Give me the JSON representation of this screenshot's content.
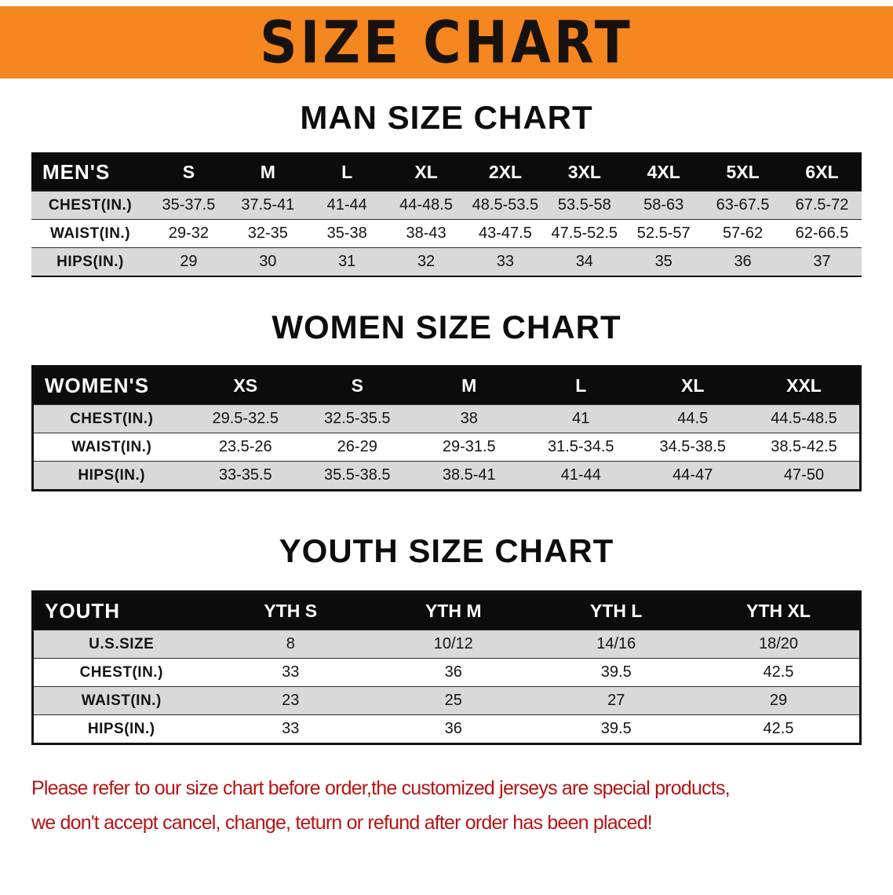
{
  "banner": {
    "title": "SIZE CHART"
  },
  "man": {
    "heading": "MAN SIZE CHART",
    "table": {
      "header": [
        "MEN'S",
        "S",
        "M",
        "L",
        "XL",
        "2XL",
        "3XL",
        "4XL",
        "5XL",
        "6XL"
      ],
      "rows": [
        [
          "CHEST(IN.)",
          "35-37.5",
          "37.5-41",
          "41-44",
          "44-48.5",
          "48.5-53.5",
          "53.5-58",
          "58-63",
          "63-67.5",
          "67.5-72"
        ],
        [
          "WAIST(IN.)",
          "29-32",
          "32-35",
          "35-38",
          "38-43",
          "43-47.5",
          "47.5-52.5",
          "52.5-57",
          "57-62",
          "62-66.5"
        ],
        [
          "HIPS(IN.)",
          "29",
          "30",
          "31",
          "32",
          "33",
          "34",
          "35",
          "36",
          "37"
        ]
      ]
    }
  },
  "women": {
    "heading": "WOMEN SIZE CHART",
    "table": {
      "header": [
        "WOMEN'S",
        "XS",
        "S",
        "M",
        "L",
        "XL",
        "XXL"
      ],
      "rows": [
        [
          "CHEST(IN.)",
          "29.5-32.5",
          "32.5-35.5",
          "38",
          "41",
          "44.5",
          "44.5-48.5"
        ],
        [
          "WAIST(IN.)",
          "23.5-26",
          "26-29",
          "29-31.5",
          "31.5-34.5",
          "34.5-38.5",
          "38.5-42.5"
        ],
        [
          "HIPS(IN.)",
          "33-35.5",
          "35.5-38.5",
          "38.5-41",
          "41-44",
          "44-47",
          "47-50"
        ]
      ]
    }
  },
  "youth": {
    "heading": "YOUTH SIZE CHART",
    "table": {
      "header": [
        "YOUTH",
        "YTH S",
        "YTH M",
        "YTH L",
        "YTH XL"
      ],
      "rows": [
        [
          "U.S.SIZE",
          "8",
          "10/12",
          "14/16",
          "18/20"
        ],
        [
          "CHEST(IN.)",
          "33",
          "36",
          "39.5",
          "42.5"
        ],
        [
          "WAIST(IN.)",
          "23",
          "25",
          "27",
          "29"
        ],
        [
          "HIPS(IN.)",
          "33",
          "36",
          "39.5",
          "42.5"
        ]
      ]
    }
  },
  "notice": {
    "line1": "Please refer to our size chart before order,the customized jerseys are special products,",
    "line2": "we don't accept cancel, change, teturn or refund after order has been placed!"
  },
  "colors": {
    "banner_bg": "#f6861f",
    "table_header_bg": "#0c0c0c",
    "row_alt_gray": "#d9d9d9",
    "notice_red": "#b81414"
  }
}
